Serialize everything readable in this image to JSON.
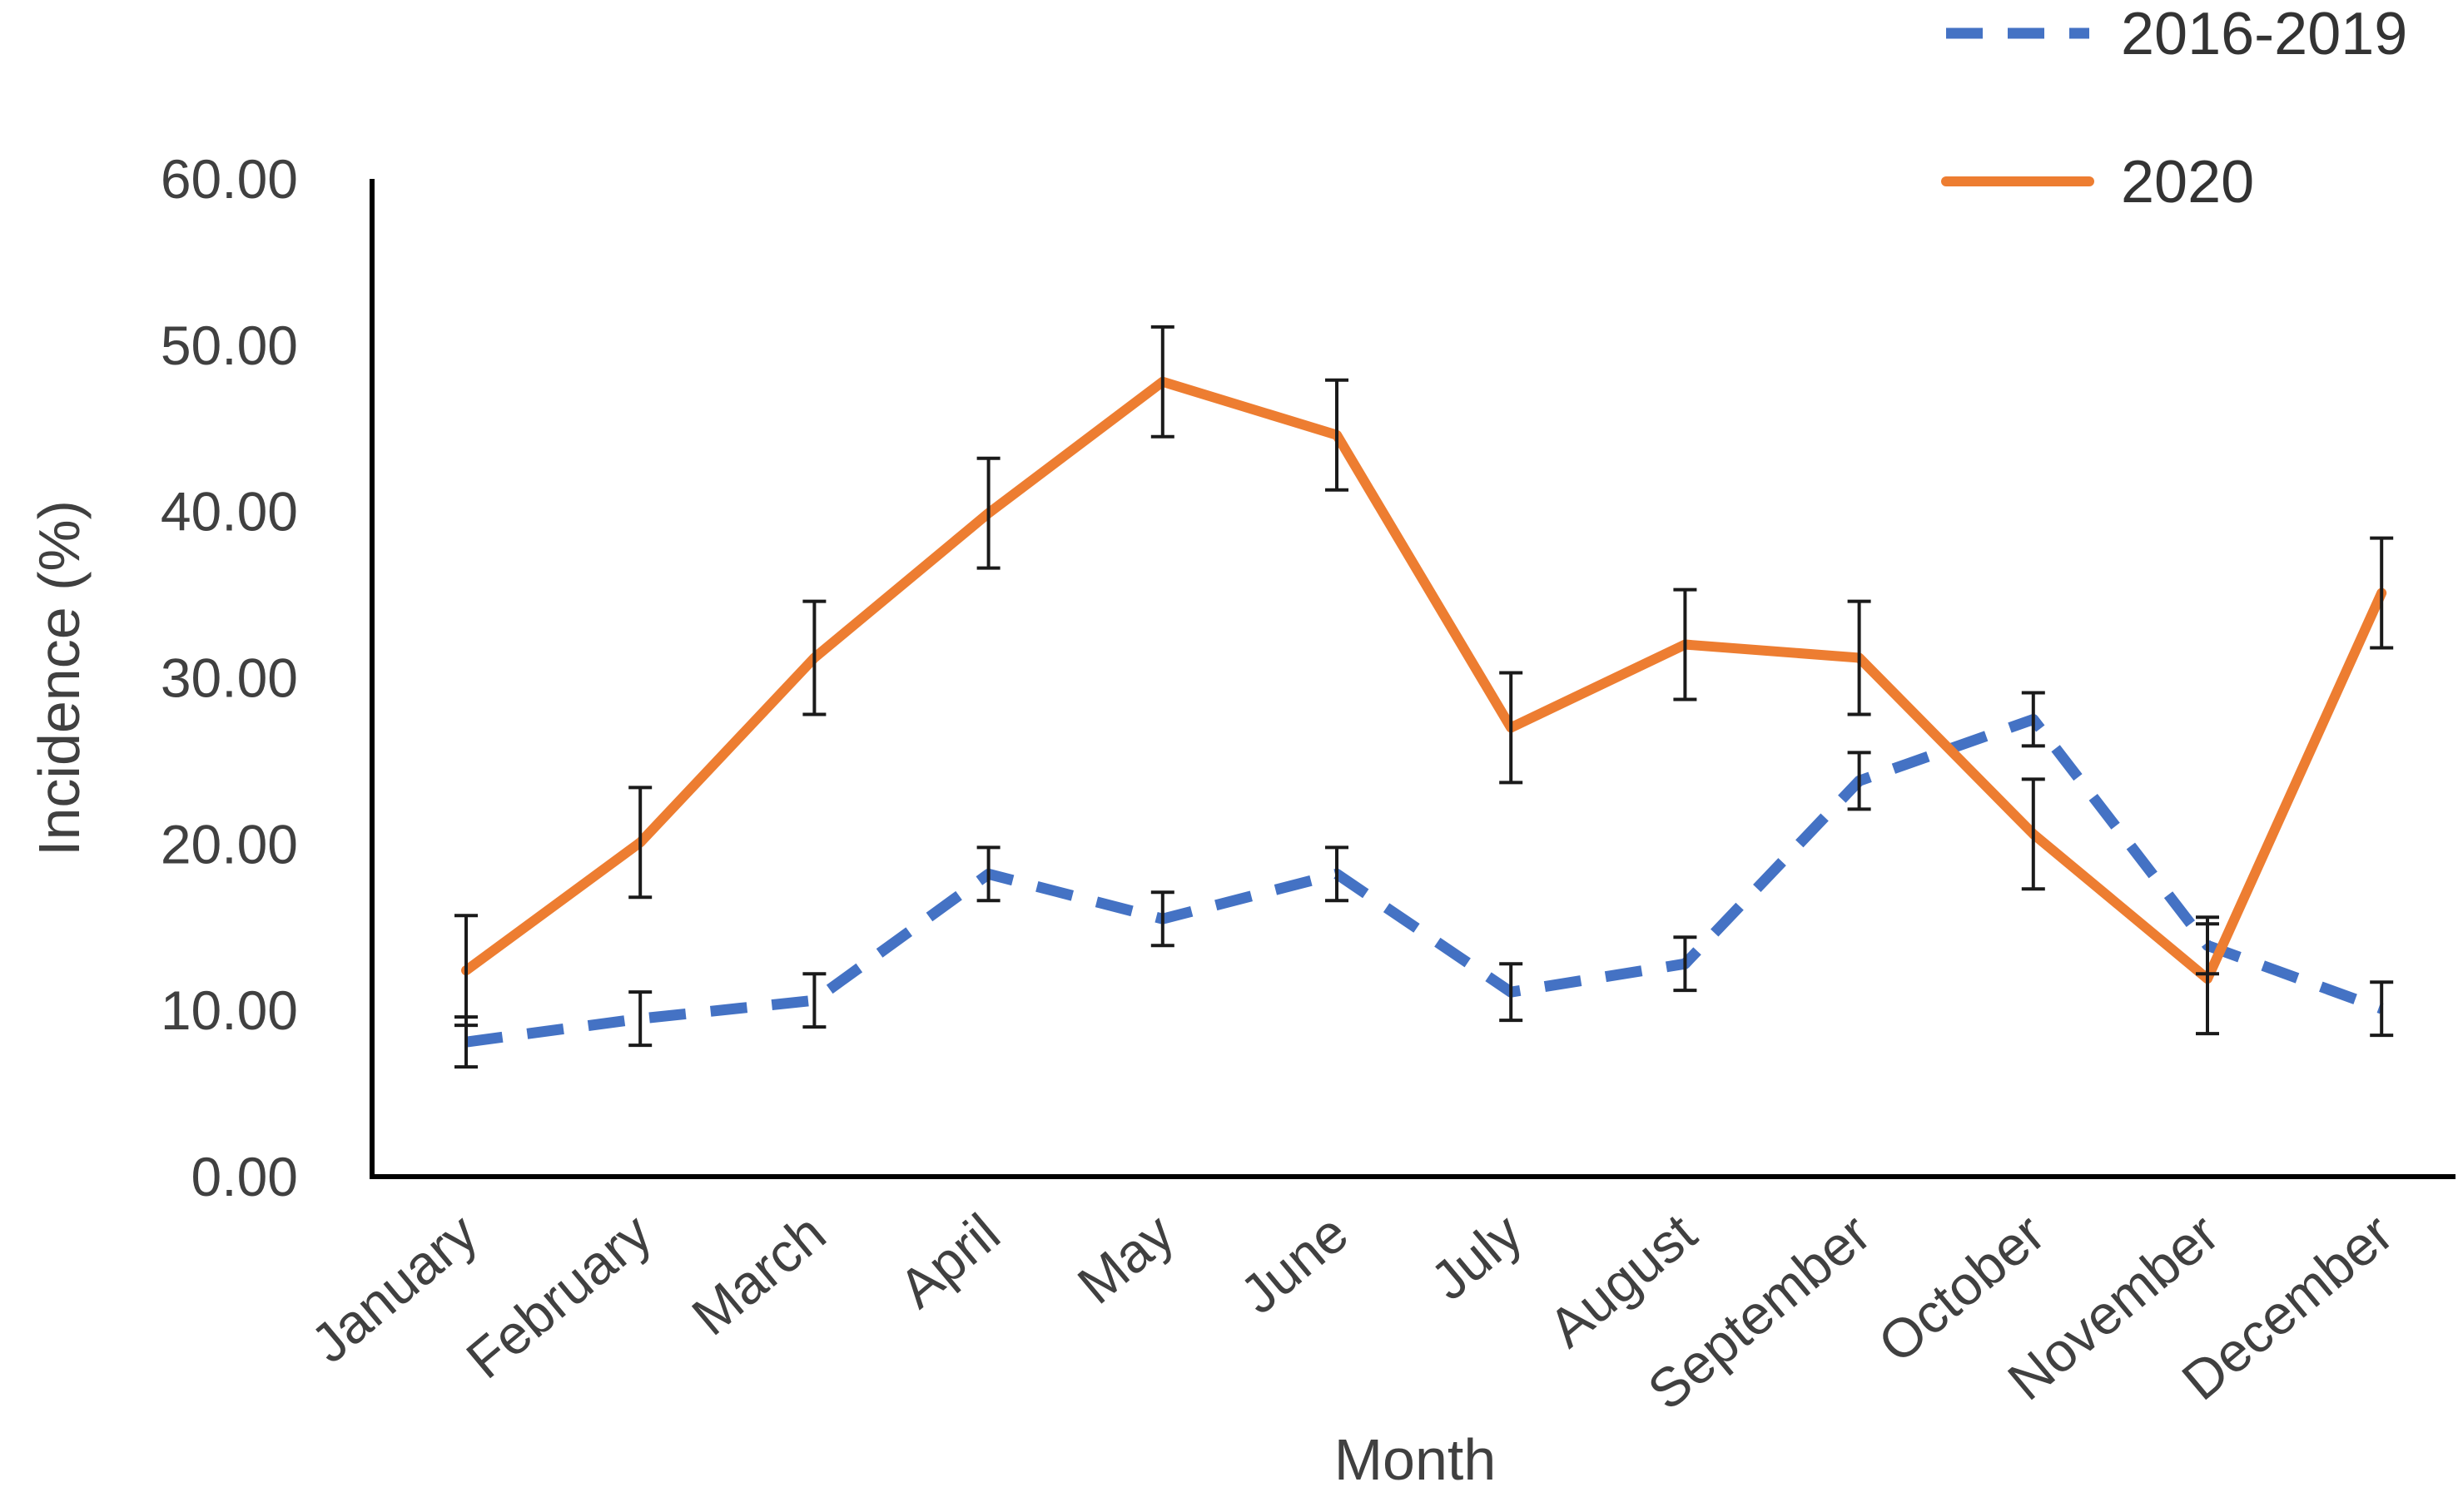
{
  "chart_data": {
    "type": "line",
    "title": "",
    "xlabel": "Month",
    "ylabel": "Incidence (%)",
    "ylim": [
      0,
      60
    ],
    "yticks": [
      "0.00",
      "10.00",
      "20.00",
      "30.00",
      "40.00",
      "50.00",
      "60.00"
    ],
    "grid": false,
    "legend_position": "top-right",
    "categories": [
      "January",
      "February",
      "March",
      "April",
      "May",
      "June",
      "July",
      "August",
      "September",
      "October",
      "November",
      "December"
    ],
    "series": [
      {
        "name": "2016-2019",
        "style": "dashed",
        "color": "#4472C4",
        "values": [
          8.1,
          9.5,
          10.6,
          18.2,
          15.5,
          18.2,
          11.1,
          12.8,
          23.8,
          27.5,
          13.9,
          10.1
        ],
        "error": [
          1.5,
          1.6,
          1.6,
          1.6,
          1.6,
          1.6,
          1.7,
          1.6,
          1.7,
          1.6,
          1.7,
          1.6
        ]
      },
      {
        "name": "2020",
        "style": "solid",
        "color": "#ED7D31",
        "values": [
          12.4,
          20.1,
          31.2,
          39.9,
          47.8,
          44.6,
          27.0,
          32.0,
          31.2,
          20.6,
          11.9,
          35.1
        ],
        "error": [
          3.3,
          3.3,
          3.4,
          3.3,
          3.3,
          3.3,
          3.3,
          3.3,
          3.4,
          3.3,
          3.3,
          3.3
        ]
      }
    ]
  }
}
